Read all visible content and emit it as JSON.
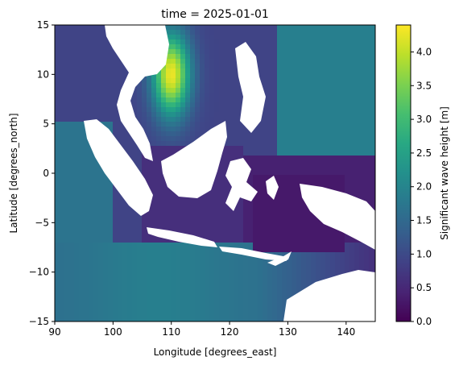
{
  "chart_data": {
    "type": "heatmap",
    "title": "time = 2025-01-01",
    "xlabel": "Longitude [degrees_east]",
    "ylabel": "Latitude [degrees_north]",
    "xlim": [
      90,
      145
    ],
    "ylim": [
      -15,
      15
    ],
    "xticks": [
      90,
      100,
      110,
      120,
      130,
      140
    ],
    "yticks": [
      -15,
      -10,
      -5,
      0,
      5,
      10,
      15
    ],
    "colorbar": {
      "label": "Significant wave height [m]",
      "colormap": "viridis",
      "range": [
        0,
        4.4
      ],
      "ticks": [
        0.0,
        0.5,
        1.0,
        1.5,
        2.0,
        2.5,
        3.0,
        3.5,
        4.0
      ]
    },
    "grid": false,
    "field_description": {
      "land": "white (no data)",
      "south_china_sea_max": {
        "lon": 110,
        "lat": 10,
        "value": 4.3
      },
      "indian_ocean_southwest": 1.8,
      "pacific_northeast": 1.9,
      "inner_seas": 0.3
    }
  },
  "colors": {
    "land": "#ffffff",
    "viridis": [
      "#440154",
      "#482878",
      "#3e4989",
      "#31688e",
      "#26828e",
      "#1f9e89",
      "#35b779",
      "#6ece58",
      "#b5de2b",
      "#fde725"
    ]
  }
}
